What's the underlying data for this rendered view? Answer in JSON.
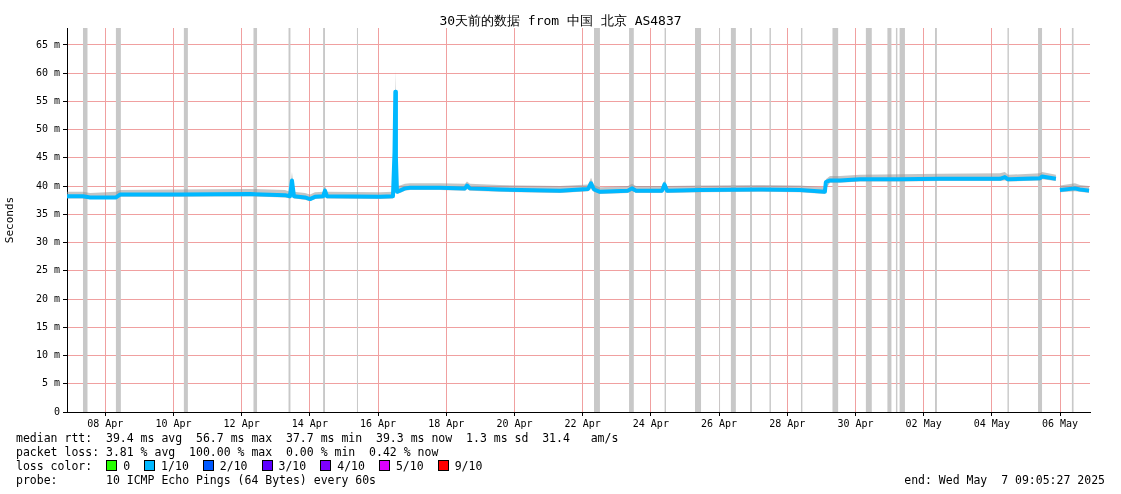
{
  "chart_data": {
    "type": "line",
    "title": "30天前的数据 from 中国 北京 AS4837",
    "ylabel": "Seconds",
    "x": [
      "2025-04-07T09:05",
      "2025-04-07T20:20",
      "2025-04-08T01:20",
      "2025-04-08T19:35",
      "2025-04-08T22:25",
      "2025-04-10T16:35",
      "2025-04-12T17:55",
      "2025-04-13T18:30",
      "2025-04-13T22:00",
      "2025-04-13T23:25",
      "2025-04-14T00:50",
      "2025-04-14T08:35",
      "2025-04-14T12:05",
      "2025-04-14T15:35",
      "2025-04-14T21:20",
      "2025-04-14T22:40",
      "2025-04-15T00:05",
      "2025-04-16T13:25",
      "2025-04-16T22:30",
      "2025-04-16T23:35",
      "2025-04-17T00:10",
      "2025-04-17T00:35",
      "2025-04-17T01:20",
      "2025-04-17T03:25",
      "2025-04-17T06:55",
      "2025-04-17T10:30",
      "2025-04-18T07:35",
      "2025-04-19T01:10",
      "2025-04-19T02:35",
      "2025-04-19T04:40",
      "2025-04-20T01:50",
      "2025-04-21T20:05",
      "2025-04-22T15:50",
      "2025-04-22T17:55",
      "2025-04-22T20:00",
      "2025-04-23T00:10",
      "2025-04-23T19:55",
      "2025-04-23T22:40",
      "2025-04-24T01:35",
      "2025-04-24T19:55",
      "2025-04-24T21:35",
      "2025-04-24T23:25",
      "2025-04-25T22:35",
      "2025-04-27T16:50",
      "2025-04-28T20:55",
      "2025-04-29T14:30",
      "2025-04-29T15:10",
      "2025-04-29T18:05",
      "2025-04-30T01:05",
      "2025-04-30T15:10",
      "2025-05-01T19:20",
      "2025-05-02T23:30",
      "2025-05-04T17:40",
      "2025-05-04T21:10",
      "2025-05-04T23:25",
      "2025-05-05T21:55",
      "2025-05-05T23:20",
      "2025-05-06T09:05",
      "2025-05-06T10:30",
      "2025-05-06T11:55",
      "2025-05-06T22:30",
      "2025-05-07T02:00",
      "2025-05-07T08:25"
    ],
    "series": [
      {
        "color": "#00b8ff",
        "values": [
          38.2,
          38.2,
          38.0,
          38.0,
          38.5,
          38.5,
          38.6,
          38.4,
          38.2,
          41.0,
          38.2,
          38.0,
          37.7,
          38.1,
          38.2,
          39.2,
          38.2,
          38.1,
          38.2,
          46,
          56.7,
          45,
          39.0,
          39.2,
          39.6,
          39.7,
          39.7,
          39.6,
          40.1,
          39.6,
          39.4,
          39.2,
          39.5,
          40.5,
          39.4,
          39.0,
          39.2,
          39.6,
          39.2,
          39.2,
          40.3,
          39.2,
          39.3,
          39.4,
          39.3,
          39.0,
          40.7,
          41.0,
          41.0,
          41.2,
          41.2,
          41.3,
          41.3,
          41.6,
          41.2,
          41.4,
          41.7,
          41.3,
          null,
          39.3,
          39.6,
          39.4,
          39.2
        ],
        "lower": [
          37.8,
          37.8,
          37.7,
          37.7,
          38.1,
          38.1,
          38.2,
          38.0,
          37.8,
          38.5,
          37.8,
          37.6,
          37.3,
          37.7,
          37.8,
          38.5,
          37.8,
          37.7,
          37.8,
          44,
          45,
          40,
          38.6,
          38.8,
          39.2,
          39.3,
          39.3,
          39.2,
          39.5,
          39.2,
          39.0,
          38.8,
          39.1,
          39.5,
          39.0,
          38.6,
          38.8,
          39.2,
          38.8,
          38.8,
          39.5,
          38.8,
          38.9,
          39.0,
          38.9,
          38.6,
          39.5,
          40.6,
          40.6,
          40.8,
          40.8,
          40.9,
          40.9,
          41.0,
          40.8,
          41.0,
          41.2,
          40.9,
          null,
          38.9,
          39.1,
          39.0,
          38.8
        ],
        "upper": [
          39.0,
          39.0,
          38.8,
          39.0,
          39.3,
          39.4,
          39.5,
          39.3,
          39.0,
          42.5,
          39.0,
          38.8,
          38.5,
          38.9,
          39.0,
          40.0,
          39.0,
          38.9,
          39.0,
          52,
          60.5,
          50,
          40.0,
          40.1,
          40.4,
          40.5,
          40.5,
          40.4,
          40.8,
          40.4,
          40.2,
          40.0,
          40.3,
          41.5,
          40.2,
          39.8,
          40.0,
          40.4,
          40.0,
          40.0,
          41.0,
          40.0,
          40.1,
          40.2,
          40.1,
          39.8,
          41.2,
          41.8,
          41.8,
          42.0,
          42.1,
          42.2,
          42.3,
          42.5,
          42.0,
          42.3,
          42.5,
          42.0,
          null,
          40.1,
          40.5,
          40.2,
          40.0
        ]
      }
    ],
    "xlim": [
      "2025-04-07T09:05",
      "2025-05-07T09:05"
    ],
    "xticks": [
      {
        "value": "2025-04-08T12:00",
        "label": "08 Apr"
      },
      {
        "value": "2025-04-10T12:00",
        "label": "10 Apr"
      },
      {
        "value": "2025-04-12T12:00",
        "label": "12 Apr"
      },
      {
        "value": "2025-04-14T12:00",
        "label": "14 Apr"
      },
      {
        "value": "2025-04-16T12:00",
        "label": "16 Apr"
      },
      {
        "value": "2025-04-18T12:00",
        "label": "18 Apr"
      },
      {
        "value": "2025-04-20T12:00",
        "label": "20 Apr"
      },
      {
        "value": "2025-04-22T12:00",
        "label": "22 Apr"
      },
      {
        "value": "2025-04-24T12:00",
        "label": "24 Apr"
      },
      {
        "value": "2025-04-26T12:00",
        "label": "26 Apr"
      },
      {
        "value": "2025-04-28T12:00",
        "label": "28 Apr"
      },
      {
        "value": "2025-04-30T12:00",
        "label": "30 Apr"
      },
      {
        "value": "2025-05-02T12:00",
        "label": "02 May"
      },
      {
        "value": "2025-05-04T12:00",
        "label": "04 May"
      },
      {
        "value": "2025-05-06T12:00",
        "label": "06 May"
      }
    ],
    "ylim": [
      0,
      68
    ],
    "yticks": [
      {
        "value": 0,
        "label": "0"
      },
      {
        "value": 5,
        "label": "5 m"
      },
      {
        "value": 10,
        "label": "10 m"
      },
      {
        "value": 15,
        "label": "15 m"
      },
      {
        "value": 20,
        "label": "20 m"
      },
      {
        "value": 25,
        "label": "25 m"
      },
      {
        "value": 30,
        "label": "30 m"
      },
      {
        "value": 35,
        "label": "35 m"
      },
      {
        "value": 40,
        "label": "40 m"
      },
      {
        "value": 45,
        "label": "45 m"
      },
      {
        "value": 50,
        "label": "50 m"
      },
      {
        "value": 55,
        "label": "55 m"
      },
      {
        "value": 60,
        "label": "60 m"
      },
      {
        "value": 65,
        "label": "65 m"
      }
    ],
    "grid": true,
    "bands": [
      {
        "axis": "x",
        "from": "2025-04-07T20:20",
        "to": "2025-04-07T23:30",
        "color": "#c8c8c8"
      },
      {
        "axis": "x",
        "from": "2025-04-08T19:30",
        "to": "2025-04-08T23:00",
        "color": "#c8c8c8"
      },
      {
        "axis": "x",
        "from": "2025-04-10T19:20",
        "to": "2025-04-10T22:10",
        "color": "#c8c8c8"
      },
      {
        "axis": "x",
        "from": "2025-04-12T20:20",
        "to": "2025-04-12T22:50",
        "color": "#c8c8c8"
      },
      {
        "axis": "x",
        "from": "2025-04-13T21:00",
        "to": "2025-04-13T22:20",
        "color": "#c8c8c8"
      },
      {
        "axis": "x",
        "from": "2025-04-14T21:20",
        "to": "2025-04-14T22:40",
        "color": "#c8c8c8"
      },
      {
        "axis": "x",
        "from": "2025-04-15T21:10",
        "to": "2025-04-15T21:50",
        "color": "#c8c8c8"
      },
      {
        "axis": "x",
        "from": "2025-04-22T20:00",
        "to": "2025-04-23T00:10",
        "color": "#c8c8c8"
      },
      {
        "axis": "x",
        "from": "2025-04-23T20:40",
        "to": "2025-04-24T00:00",
        "color": "#c8c8c8"
      },
      {
        "axis": "x",
        "from": "2025-04-24T21:40",
        "to": "2025-04-24T22:40",
        "color": "#c8c8c8"
      },
      {
        "axis": "x",
        "from": "2025-04-25T19:05",
        "to": "2025-04-25T23:20",
        "color": "#c8c8c8"
      },
      {
        "axis": "x",
        "from": "2025-04-26T12:00",
        "to": "2025-04-26T12:40",
        "color": "#c8c8c8"
      },
      {
        "axis": "x",
        "from": "2025-04-26T20:20",
        "to": "2025-04-26T23:50",
        "color": "#c8c8c8"
      },
      {
        "axis": "x",
        "from": "2025-04-27T09:50",
        "to": "2025-04-27T11:10",
        "color": "#c8c8c8"
      },
      {
        "axis": "x",
        "from": "2025-04-27T23:30",
        "to": "2025-04-28T00:30",
        "color": "#c8c8c8"
      },
      {
        "axis": "x",
        "from": "2025-04-28T21:40",
        "to": "2025-04-28T22:40",
        "color": "#c8c8c8"
      },
      {
        "axis": "x",
        "from": "2025-04-29T19:50",
        "to": "2025-04-29T23:50",
        "color": "#c8c8c8"
      },
      {
        "axis": "x",
        "from": "2025-04-30T19:20",
        "to": "2025-04-30T23:30",
        "color": "#c8c8c8"
      },
      {
        "axis": "x",
        "from": "2025-05-01T10:30",
        "to": "2025-05-01T13:20",
        "color": "#c8c8c8"
      },
      {
        "axis": "x",
        "from": "2025-05-01T16:30",
        "to": "2025-05-01T17:30",
        "color": "#c8c8c8"
      },
      {
        "axis": "x",
        "from": "2025-05-01T19:05",
        "to": "2025-05-01T22:50",
        "color": "#c8c8c8"
      },
      {
        "axis": "x",
        "from": "2025-05-02T20:00",
        "to": "2025-05-02T21:20",
        "color": "#c8c8c8"
      },
      {
        "axis": "x",
        "from": "2025-05-04T23:00",
        "to": "2025-05-05T00:00",
        "color": "#c8c8c8"
      },
      {
        "axis": "x",
        "from": "2025-05-05T20:30",
        "to": "2025-05-05T23:20",
        "color": "#c8c8c8"
      },
      {
        "axis": "x",
        "from": "2025-05-06T20:20",
        "to": "2025-05-06T21:30",
        "color": "#c8c8c8"
      }
    ],
    "annotations": [
      "median rtt:  39.4 ms avg  56.7 ms max  37.7 ms min  39.3 ms now  1.3 ms sd  31.4   am/s",
      "packet loss: 3.81 % avg  100.00 % max  0.00 % min  0.42 % now",
      "loss color:",
      "0",
      "1/10",
      "2/10",
      "3/10",
      "4/10",
      "5/10",
      "9/10",
      "probe:       10 ICMP Echo Pings (64 Bytes) every 60s",
      "end: Wed May  7 09:05:27 2025"
    ]
  }
}
